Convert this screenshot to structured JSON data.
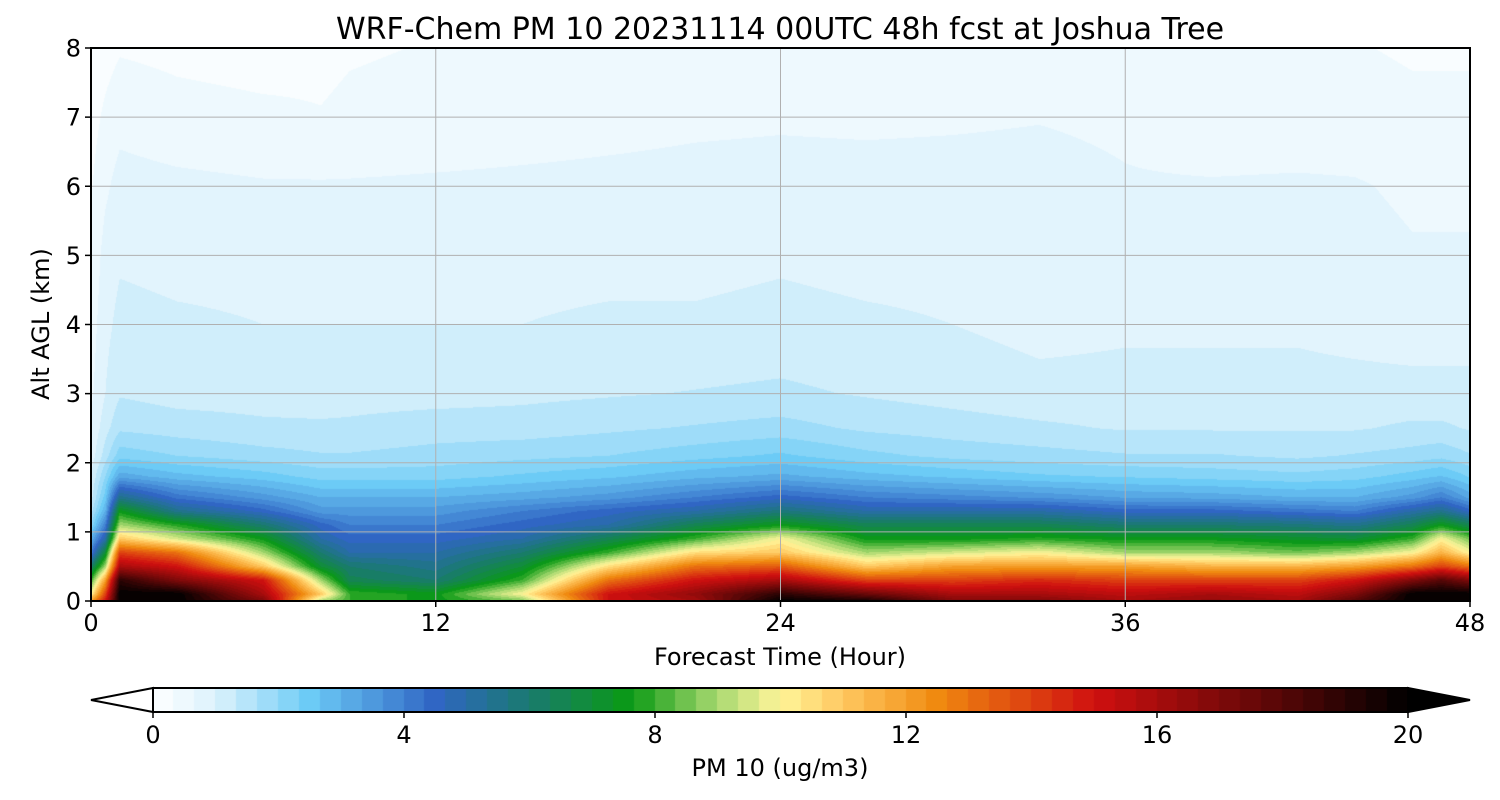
{
  "chart_data": {
    "type": "heatmap",
    "title": "WRF-Chem PM 10  20231114 00UTC 48h fcst at Joshua Tree",
    "xlabel": "Forecast Time (Hour)",
    "ylabel": "Alt AGL (km)",
    "xlim": [
      0,
      48
    ],
    "ylim": [
      0,
      8
    ],
    "x_ticks": [
      0,
      12,
      24,
      36,
      48
    ],
    "y_ticks": [
      0,
      1,
      2,
      3,
      4,
      5,
      6,
      7,
      8
    ],
    "grid": true,
    "colorbar": {
      "label": "PM 10  (ug/m3)",
      "range": [
        0,
        20
      ],
      "ticks": [
        0,
        4,
        8,
        12,
        16,
        20
      ],
      "extend": "both",
      "colormap": [
        {
          "value": 0,
          "color": "#ffffff"
        },
        {
          "value": 1,
          "color": "#dcf2fc"
        },
        {
          "value": 2.5,
          "color": "#6ccbf6"
        },
        {
          "value": 4.5,
          "color": "#3066c4"
        },
        {
          "value": 6,
          "color": "#1a7a70"
        },
        {
          "value": 7.6,
          "color": "#0a9a14"
        },
        {
          "value": 9,
          "color": "#a8d870"
        },
        {
          "value": 10,
          "color": "#fff59a"
        },
        {
          "value": 11,
          "color": "#ffc860"
        },
        {
          "value": 12.5,
          "color": "#f08a10"
        },
        {
          "value": 15,
          "color": "#d01010"
        },
        {
          "value": 17.5,
          "color": "#6a0808"
        },
        {
          "value": 20,
          "color": "#000000"
        }
      ]
    },
    "field": {
      "x": [
        0,
        0.5,
        1,
        3,
        6,
        8,
        9,
        12,
        15,
        18,
        21,
        24,
        27,
        30,
        33,
        36,
        39,
        42,
        44,
        46,
        47,
        48
      ],
      "y": [
        0,
        0.1,
        0.3,
        0.5,
        0.7,
        0.9,
        1.1,
        1.3,
        1.5,
        1.8,
        2.1,
        2.5,
        3,
        4,
        5,
        6,
        7,
        8
      ],
      "values": [
        [
          12,
          15,
          20,
          20,
          17,
          9,
          8,
          7.5,
          8.5,
          15,
          16,
          20,
          19.5,
          17,
          17,
          16,
          16.5,
          16,
          18,
          20,
          20,
          20
        ],
        [
          10,
          14,
          20,
          20,
          16,
          11,
          8,
          7.5,
          10,
          15,
          16.5,
          19,
          17.5,
          16,
          16,
          15.5,
          16,
          15.5,
          17,
          20,
          20,
          20
        ],
        [
          8,
          12,
          19,
          17,
          15,
          9,
          6.5,
          6,
          8,
          13,
          15,
          16,
          14,
          14,
          14.5,
          14,
          14,
          14,
          15,
          17,
          18,
          17
        ],
        [
          6,
          9,
          16,
          15,
          11,
          7,
          6,
          5.5,
          7,
          10.5,
          13,
          13.5,
          11,
          12,
          12,
          12,
          11.5,
          11.5,
          12,
          13,
          14,
          13
        ],
        [
          4,
          7,
          14,
          13,
          9,
          6,
          5,
          5,
          6,
          8,
          10.5,
          11,
          9,
          9.5,
          10,
          9,
          9,
          8.5,
          9,
          10,
          11.5,
          10
        ],
        [
          3,
          5,
          11,
          9.5,
          7.5,
          5,
          4.5,
          4.5,
          5,
          6.5,
          8,
          10,
          7.5,
          7.5,
          7.8,
          7.5,
          7.5,
          7.2,
          7,
          8,
          10,
          8.5
        ],
        [
          2,
          4,
          9,
          7.8,
          6,
          4.5,
          4,
          4,
          4.5,
          5,
          6.5,
          7.5,
          6.5,
          6.5,
          6.5,
          6,
          6,
          5.8,
          5.5,
          6.5,
          7.5,
          6.5
        ],
        [
          1.5,
          3,
          7.5,
          5.5,
          4.5,
          3.5,
          3.5,
          3.5,
          4,
          4.5,
          5,
          5.8,
          5,
          5,
          5,
          4.5,
          4.5,
          4.2,
          4,
          5,
          5.5,
          4.5
        ],
        [
          1.2,
          2.5,
          5.5,
          4.2,
          3.5,
          3,
          3,
          3,
          3.2,
          3.5,
          4,
          4.5,
          4,
          3.8,
          3.6,
          3.3,
          3.2,
          3,
          3,
          3.5,
          4,
          3.2
        ],
        [
          1,
          2,
          3.2,
          2.8,
          2.5,
          2.2,
          2.2,
          2.2,
          2.4,
          2.6,
          2.9,
          3.1,
          2.8,
          2.6,
          2.4,
          2.3,
          2.2,
          2.1,
          2.2,
          2.5,
          2.7,
          2.3
        ],
        [
          0.8,
          1.5,
          2.2,
          2,
          1.8,
          1.7,
          1.7,
          1.8,
          1.9,
          2,
          2.2,
          2.4,
          2.1,
          1.9,
          1.8,
          1.7,
          1.7,
          1.6,
          1.7,
          1.8,
          1.9,
          1.7
        ],
        [
          0.7,
          1.2,
          1.6,
          1.5,
          1.4,
          1.4,
          1.4,
          1.5,
          1.5,
          1.6,
          1.7,
          1.8,
          1.6,
          1.5,
          1.4,
          1.3,
          1.3,
          1.3,
          1.3,
          1.4,
          1.4,
          1.3
        ],
        [
          0.6,
          1,
          1.3,
          1.2,
          1.2,
          1.15,
          1.2,
          1.2,
          1.25,
          1.3,
          1.35,
          1.4,
          1.3,
          1.2,
          1.1,
          1.1,
          1.1,
          1.1,
          1.1,
          1.1,
          1.1,
          1.1
        ],
        [
          0.5,
          0.9,
          1.1,
          1.05,
          1,
          1,
          1,
          1,
          1,
          1.05,
          1.05,
          1.1,
          1.05,
          1,
          0.9,
          0.95,
          0.95,
          0.95,
          0.9,
          0.85,
          0.85,
          0.85
        ],
        [
          0.4,
          0.8,
          0.95,
          0.9,
          0.9,
          0.9,
          0.9,
          0.9,
          0.9,
          0.9,
          0.9,
          0.95,
          0.9,
          0.9,
          0.9,
          0.85,
          0.85,
          0.85,
          0.8,
          0.7,
          0.7,
          0.7
        ],
        [
          0.3,
          0.6,
          0.8,
          0.75,
          0.7,
          0.7,
          0.7,
          0.72,
          0.74,
          0.76,
          0.78,
          0.8,
          0.8,
          0.8,
          0.8,
          0.7,
          0.7,
          0.72,
          0.7,
          0.6,
          0.6,
          0.6
        ],
        [
          0.2,
          0.4,
          0.55,
          0.45,
          0.4,
          0.35,
          0.4,
          0.45,
          0.5,
          0.55,
          0.6,
          0.62,
          0.6,
          0.62,
          0.65,
          0.6,
          0.45,
          0.45,
          0.45,
          0.4,
          0.4,
          0.4
        ],
        [
          0.1,
          0.2,
          0.3,
          0.25,
          0.2,
          0.25,
          0.3,
          0.35,
          0.4,
          0.45,
          0.5,
          0.5,
          0.5,
          0.5,
          0.5,
          0.45,
          0.35,
          0.35,
          0.35,
          0.3,
          0.3,
          0.3
        ]
      ]
    }
  }
}
